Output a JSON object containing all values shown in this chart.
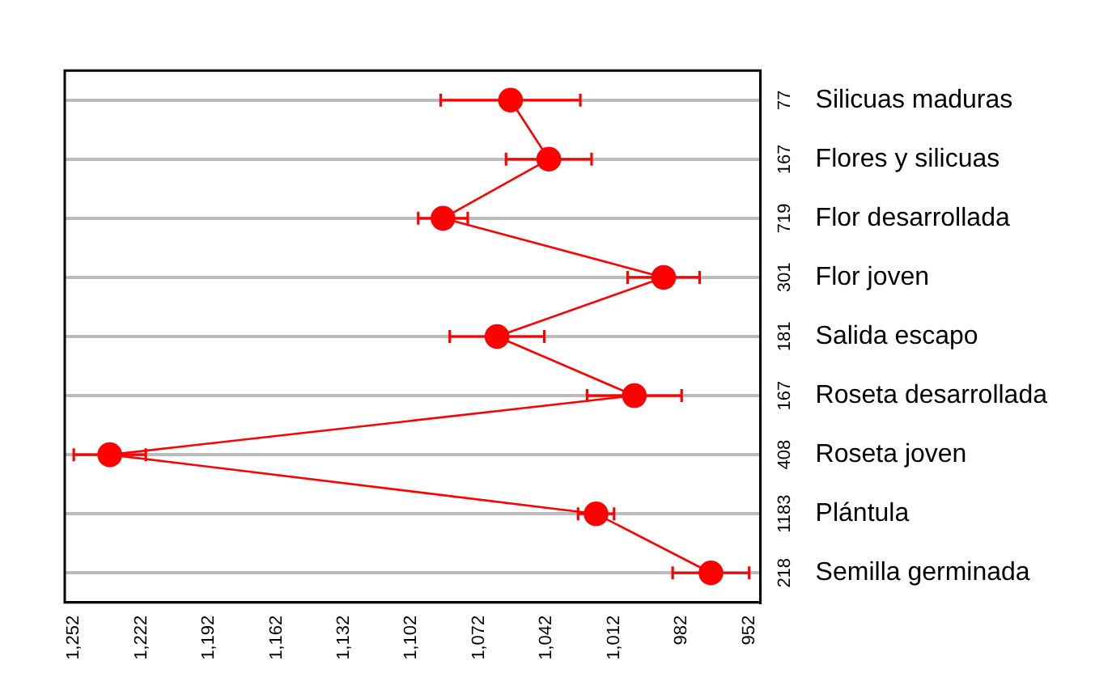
{
  "chart_data": {
    "type": "line",
    "orientation": "horizontal",
    "categories": [
      "Silicuas maduras",
      "Flores y silicuas",
      "Flor desarrollada",
      "Flor joven",
      "Salida escapo",
      "Roseta desarrollada",
      "Roseta joven",
      "Plántula",
      "Semilla germinada"
    ],
    "series": [
      {
        "color": "#ff0000",
        "values": [
          1058,
          1041,
          1088,
          990,
          1064,
          1003,
          1236,
          1020,
          969
        ],
        "errors": [
          31,
          19,
          11,
          16,
          21,
          21,
          16,
          8,
          17
        ]
      }
    ],
    "xlim": [
      1256,
      947
    ],
    "xticks": [
      {
        "value": 1252,
        "label": "1,252"
      },
      {
        "value": 1222,
        "label": "1,222"
      },
      {
        "value": 1192,
        "label": "1,192"
      },
      {
        "value": 1162,
        "label": "1,162"
      },
      {
        "value": 1132,
        "label": "1,132"
      },
      {
        "value": 1102,
        "label": "1,102"
      },
      {
        "value": 1072,
        "label": "1,072"
      },
      {
        "value": 1042,
        "label": "1,042"
      },
      {
        "value": 1012,
        "label": "1,012"
      },
      {
        "value": 982,
        "label": "982"
      },
      {
        "value": 952,
        "label": "952"
      }
    ],
    "annotations": [
      "77",
      "167",
      "719",
      "301",
      "181",
      "167",
      "408",
      "1183",
      "218"
    ],
    "grid": "y",
    "marker": "circle",
    "line_style": "solid",
    "legend": false
  }
}
